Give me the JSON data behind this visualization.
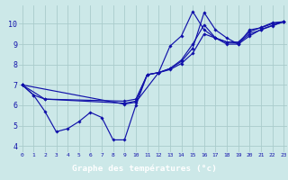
{
  "title": "Graphe des températures (°c)",
  "bg_color": "#cce8e8",
  "grid_color": "#aacccc",
  "line_color": "#1111aa",
  "bottom_bar_color": "#2222aa",
  "xlim": [
    -0.3,
    23.3
  ],
  "ylim": [
    3.7,
    10.9
  ],
  "xticks": [
    0,
    1,
    2,
    3,
    4,
    5,
    6,
    7,
    8,
    9,
    10,
    11,
    12,
    13,
    14,
    15,
    16,
    17,
    18,
    19,
    20,
    21,
    22,
    23
  ],
  "yticks": [
    4,
    5,
    6,
    7,
    8,
    9,
    10
  ],
  "series": [
    {
      "x": [
        0,
        1,
        2,
        3,
        4,
        5,
        6,
        7,
        8,
        9,
        10,
        11,
        12,
        13,
        14,
        15,
        16,
        17,
        18,
        19,
        20,
        21,
        22,
        23
      ],
      "y": [
        7.0,
        6.5,
        5.7,
        4.7,
        4.85,
        5.2,
        5.65,
        5.4,
        4.3,
        4.3,
        6.0,
        7.5,
        7.6,
        8.9,
        9.4,
        10.6,
        9.7,
        9.3,
        9.0,
        9.0,
        9.7,
        9.8,
        10.0,
        10.1
      ]
    },
    {
      "x": [
        0,
        1,
        2,
        9,
        10,
        11,
        12,
        13,
        14,
        15,
        16,
        17,
        18,
        19,
        20,
        21,
        22,
        23
      ],
      "y": [
        7.0,
        6.5,
        6.3,
        6.2,
        6.3,
        7.5,
        7.6,
        7.75,
        8.05,
        8.55,
        9.5,
        9.3,
        9.1,
        9.05,
        9.5,
        9.7,
        9.9,
        10.1
      ]
    },
    {
      "x": [
        0,
        2,
        9,
        10,
        11,
        12,
        13,
        14,
        15,
        16,
        17,
        18,
        19,
        20,
        21,
        22,
        23
      ],
      "y": [
        7.0,
        6.3,
        6.1,
        6.2,
        7.5,
        7.6,
        7.8,
        8.15,
        8.8,
        10.55,
        9.7,
        9.3,
        9.0,
        9.4,
        9.72,
        9.92,
        10.1
      ]
    },
    {
      "x": [
        0,
        9,
        10,
        12,
        13,
        14,
        15,
        16,
        17,
        18,
        19,
        20,
        21,
        22,
        23
      ],
      "y": [
        7.0,
        6.05,
        6.15,
        7.6,
        7.8,
        8.22,
        9.0,
        9.95,
        9.3,
        9.1,
        9.1,
        9.6,
        9.82,
        10.05,
        10.1
      ]
    }
  ]
}
